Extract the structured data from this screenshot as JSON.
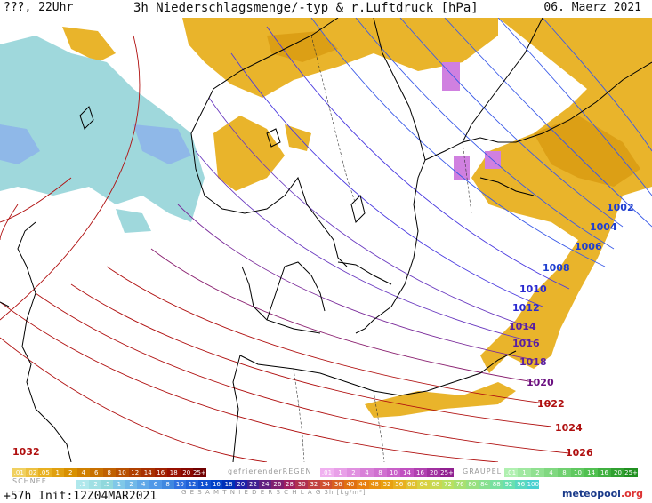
{
  "header": {
    "left": "???, 22Uhr",
    "title": "3h Niederschlagsmenge/-typ & r.Luftdruck [hPa]",
    "date": "06. Maerz 2021"
  },
  "isobars": [
    {
      "label": "1002",
      "color": "#1f3fd0"
    },
    {
      "label": "1004",
      "color": "#1f3fd0"
    },
    {
      "label": "1006",
      "color": "#1f3fd0"
    },
    {
      "label": "1008",
      "color": "#1f3fd0"
    },
    {
      "label": "1010",
      "color": "#2a2ad0"
    },
    {
      "label": "1012",
      "color": "#2a2ad0"
    },
    {
      "label": "1014",
      "color": "#5a1fa0"
    },
    {
      "label": "1016",
      "color": "#5a1fa0"
    },
    {
      "label": "1018",
      "color": "#5a1fa0"
    },
    {
      "label": "1020",
      "color": "#6a1080"
    },
    {
      "label": "1022",
      "color": "#b01010"
    },
    {
      "label": "1024",
      "color": "#b01010"
    },
    {
      "label": "1026",
      "color": "#b01010"
    },
    {
      "label": "1032",
      "color": "#b01010"
    }
  ],
  "legend": {
    "rain_values": [
      ".01",
      ".02",
      ".05",
      "1",
      "2",
      "4",
      "6",
      "8",
      "10",
      "12",
      "14",
      "16",
      "18",
      "20",
      "25+"
    ],
    "freezing_label": "gefrierenderREGEN",
    "freezing_values": [
      ".01",
      "1",
      "2",
      "4",
      "8",
      "10",
      "14",
      "16",
      "20",
      "25+"
    ],
    "graupel_label": "GRAUPEL",
    "graupel_values": [
      ".01",
      "1",
      "2",
      "4",
      "8",
      "10",
      "14",
      "16",
      "20",
      "25+"
    ],
    "snow_label": "SCHNEE",
    "snow_values": [
      ".1",
      ".2",
      ".5",
      "1",
      "2",
      "4",
      "6",
      "8",
      "10",
      "12",
      "14",
      "16",
      "18",
      "20",
      "22",
      "24",
      "26",
      "28",
      "30",
      "32",
      "34",
      "36",
      "40",
      "44",
      "48",
      "52",
      "56",
      "60",
      "64",
      "68",
      "72",
      "76",
      "80",
      "84",
      "88",
      "92",
      "96",
      "100"
    ],
    "total_label": "G E S A M T N I E D E R S C H L A G   3h   [kg/m²]"
  },
  "colors": {
    "rain": "#e8b020",
    "rain_dark": "#d89a10",
    "snow": "#9fd8dc",
    "snow_blue": "#8fb8e8",
    "freezing": "#d080e0",
    "coast": "#000000"
  },
  "footer": {
    "run": "+57h  Init:12Z04MAR2021"
  },
  "logo": {
    "brand": "meteopool",
    "suffix": ".org"
  }
}
